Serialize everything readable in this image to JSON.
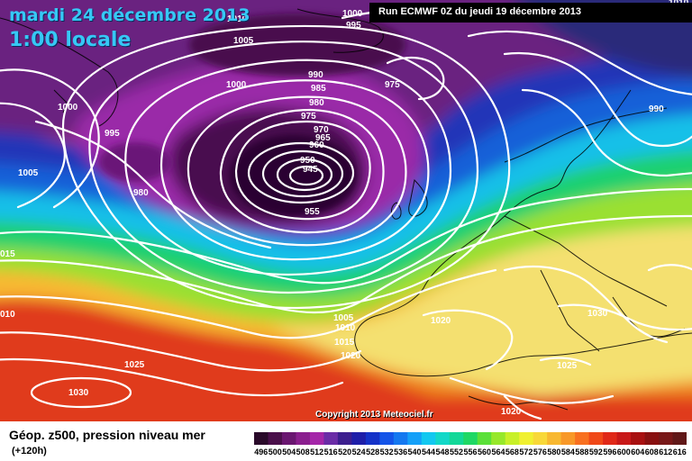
{
  "header": {
    "date": "mardi 24 décembre 2013",
    "local_time": "1:00 locale",
    "run": "Run ECMWF 0Z du jeudi 19 décembre 2013"
  },
  "copyright": "Copyright 2013 Meteociel.fr",
  "legend": {
    "title": "Géop. z500, pression niveau mer",
    "lead": "(+120h)",
    "scale_values": [
      496,
      500,
      504,
      508,
      512,
      516,
      520,
      524,
      528,
      532,
      536,
      540,
      544,
      548,
      552,
      556,
      560,
      564,
      568,
      572,
      576,
      580,
      584,
      588,
      592,
      596,
      600,
      604,
      608,
      612,
      616
    ],
    "scale_colors": [
      "#2a0a2a",
      "#4a0f4a",
      "#6a1670",
      "#8a1e8e",
      "#a426a8",
      "#6a2ca6",
      "#3c1e8e",
      "#1e1ea8",
      "#1432c8",
      "#1454e8",
      "#1478f0",
      "#14a0f8",
      "#12c8f0",
      "#12d8c8",
      "#12d898",
      "#1ed864",
      "#5ae038",
      "#96e82a",
      "#c8f028",
      "#f0f030",
      "#f8d838",
      "#f8b830",
      "#f89828",
      "#f87020",
      "#f04818",
      "#e02818",
      "#c81818",
      "#a81010",
      "#881010",
      "#781818",
      "#601818"
    ]
  },
  "map": {
    "colors": {
      "ocean_purple": "#4a1048",
      "low_core": "#2a0630",
      "violet": "#a030b0",
      "blue": "#1844c8",
      "cyan": "#12b8e8",
      "green": "#3ed060",
      "yellow": "#f0e060",
      "orange": "#f08a28",
      "red": "#e04020",
      "isobar": "#ffffff",
      "coast": "#000000"
    },
    "isobar_labels": [
      {
        "text": "1000",
        "lat": "map"
      },
      {
        "text": "995"
      },
      {
        "text": "1010"
      },
      {
        "text": "1005"
      },
      {
        "text": "1000"
      },
      {
        "text": "1000"
      },
      {
        "text": "990"
      },
      {
        "text": "985"
      },
      {
        "text": "980"
      },
      {
        "text": "975"
      },
      {
        "text": "975"
      },
      {
        "text": "970"
      },
      {
        "text": "965"
      },
      {
        "text": "960"
      },
      {
        "text": "950"
      },
      {
        "text": "945"
      },
      {
        "text": "955"
      },
      {
        "text": "995"
      },
      {
        "text": "1005"
      },
      {
        "text": "980"
      },
      {
        "text": "990"
      },
      {
        "text": "015"
      },
      {
        "text": "010"
      },
      {
        "text": "1025"
      },
      {
        "text": "1030"
      },
      {
        "text": "1005"
      },
      {
        "text": "1010"
      },
      {
        "text": "1015"
      },
      {
        "text": "1020"
      },
      {
        "text": "1020"
      },
      {
        "text": "1030"
      },
      {
        "text": "1025"
      },
      {
        "text": "1020"
      },
      {
        "text": "1010"
      }
    ]
  }
}
